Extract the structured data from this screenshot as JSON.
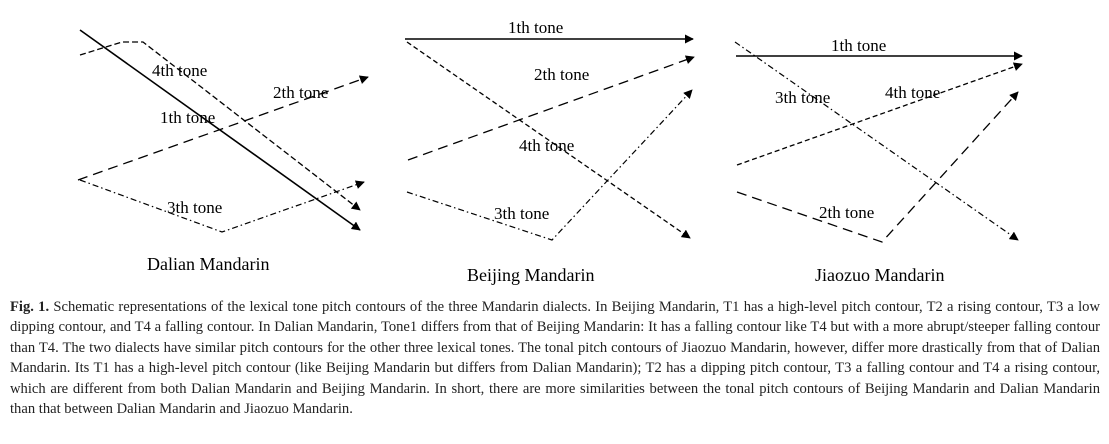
{
  "figure": {
    "panels": [
      {
        "title": "Dalian Mandarin",
        "tones": [
          {
            "label": "4th tone",
            "contour": "high-level then falling"
          },
          {
            "label": "2th tone",
            "contour": "rising"
          },
          {
            "label": "1th tone",
            "contour": "steep falling"
          },
          {
            "label": "3th tone",
            "contour": "low dipping"
          }
        ]
      },
      {
        "title": "Beijing Mandarin",
        "tones": [
          {
            "label": "1th tone",
            "contour": "high-level"
          },
          {
            "label": "2th tone",
            "contour": "rising"
          },
          {
            "label": "4th tone",
            "contour": "falling"
          },
          {
            "label": "3th tone",
            "contour": "low dipping"
          }
        ]
      },
      {
        "title": "Jiaozuo Mandarin",
        "tones": [
          {
            "label": "1th tone",
            "contour": "high-level"
          },
          {
            "label": "3th tone",
            "contour": "falling"
          },
          {
            "label": "4th tone",
            "contour": "rising"
          },
          {
            "label": "2th tone",
            "contour": "dipping"
          }
        ]
      }
    ]
  },
  "caption": {
    "label": "Fig. 1.",
    "text": "Schematic representations of the lexical tone pitch contours of the three Mandarin dialects. In Beijing Mandarin, T1 has a high-level pitch contour, T2 a rising contour, T3 a low dipping contour, and T4 a falling contour. In Dalian Mandarin, Tone1 differs from that of Beijing Mandarin: It has a falling contour like T4 but with a more abrupt/steeper falling contour than T4. The two dialects have similar pitch contours for the other three lexical tones. The tonal pitch contours of Jiaozuo Mandarin, however, differ more drastically from that of Dalian Mandarin. Its T1 has a high-level pitch contour (like Beijing Mandarin but differs from Dalian Mandarin); T2 has a dipping pitch contour, T3 a falling contour and T4 a rising contour, which are different from both Dalian Mandarin and Beijing Mandarin. In short, there are more similarities between the tonal pitch contours of Beijing Mandarin and Dalian Mandarin than that between Dalian Mandarin and Jiaozuo Mandarin."
  }
}
